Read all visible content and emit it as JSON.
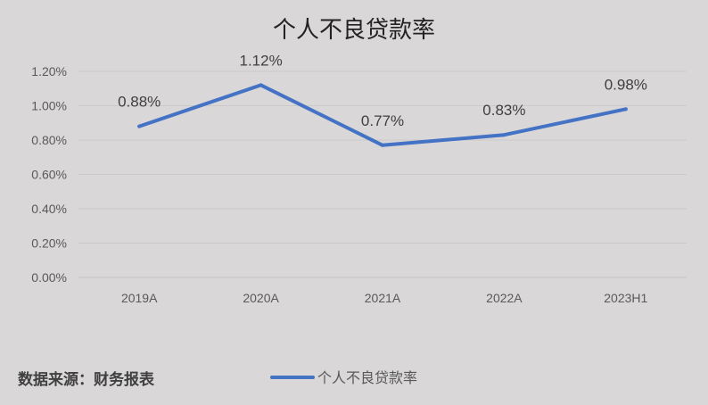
{
  "source_note": "数据来源：财务报表",
  "chart_data": {
    "type": "line",
    "title": "个人不良贷款率",
    "categories": [
      "2019A",
      "2020A",
      "2021A",
      "2022A",
      "2023H1"
    ],
    "series": [
      {
        "name": "个人不良贷款率",
        "values": [
          0.88,
          1.12,
          0.77,
          0.83,
          0.98
        ],
        "labels": [
          "0.88%",
          "1.12%",
          "0.77%",
          "0.83%",
          "0.98%"
        ],
        "color": "#4472c4"
      }
    ],
    "y_ticks": [
      "0.00%",
      "0.20%",
      "0.40%",
      "0.60%",
      "0.80%",
      "1.00%",
      "1.20%"
    ],
    "ylim": [
      0,
      1.2
    ],
    "grid": true,
    "legend_position": "bottom"
  }
}
